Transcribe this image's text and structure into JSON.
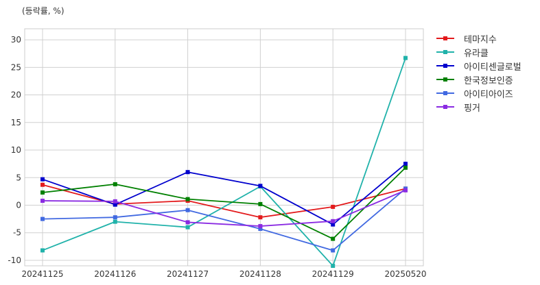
{
  "chart_data": {
    "type": "line",
    "unit_label": "(등락률, %)",
    "categories": [
      "20241125",
      "20241126",
      "20241127",
      "20241128",
      "20241129",
      "20250520"
    ],
    "ylim": [
      -11,
      32
    ],
    "yticks": [
      30,
      25,
      20,
      15,
      10,
      5,
      0,
      -5,
      -10
    ],
    "grid": true,
    "legend_position": "right",
    "series": [
      {
        "name": "테마지수",
        "color": "#e31a1c",
        "values": [
          3.7,
          0.2,
          0.8,
          -2.2,
          -0.3,
          3.0
        ]
      },
      {
        "name": "유라클",
        "color": "#20b2aa",
        "values": [
          -8.2,
          -3.0,
          -4.0,
          3.4,
          -11.0,
          26.7
        ]
      },
      {
        "name": "아이티센글로벌",
        "color": "#0000cd",
        "values": [
          4.7,
          0.1,
          6.0,
          3.5,
          -3.5,
          7.5
        ]
      },
      {
        "name": "한국정보인증",
        "color": "#008000",
        "values": [
          2.3,
          3.8,
          1.1,
          0.2,
          -6.1,
          6.8
        ]
      },
      {
        "name": "아이티아이즈",
        "color": "#4169e1",
        "values": [
          -2.5,
          -2.2,
          -0.9,
          -4.3,
          -8.2,
          3.0
        ]
      },
      {
        "name": "핑거",
        "color": "#8a2be2",
        "values": [
          0.8,
          0.7,
          -3.1,
          -3.8,
          -2.9,
          2.7
        ]
      }
    ]
  }
}
